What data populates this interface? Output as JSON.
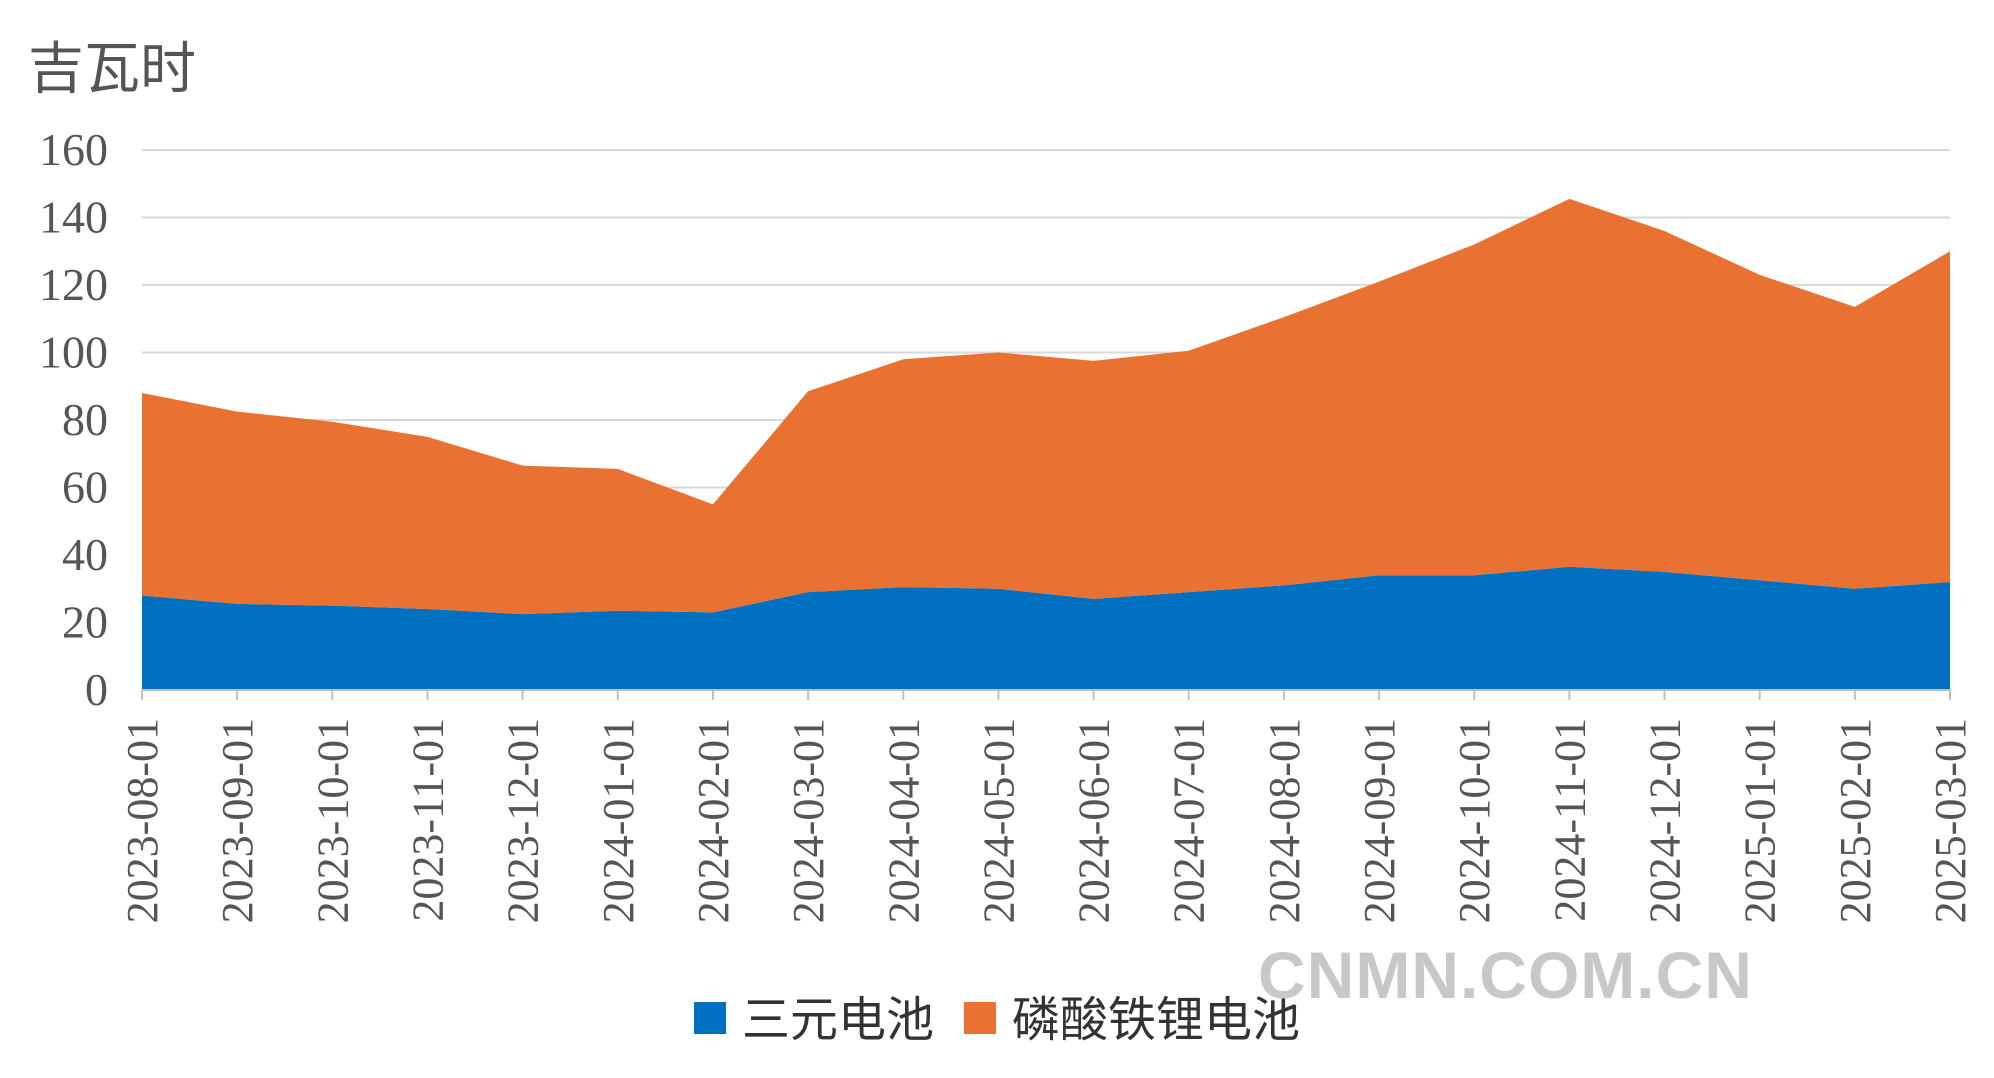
{
  "chart_data": {
    "type": "area",
    "stacked": true,
    "title": "",
    "ylabel": "吉瓦时",
    "xlabel": "",
    "ylim": [
      0,
      160
    ],
    "yticks": [
      0,
      20,
      40,
      60,
      80,
      100,
      120,
      140,
      160
    ],
    "grid": true,
    "legend_position": "bottom",
    "categories": [
      "2023-08-01",
      "2023-09-01",
      "2023-10-01",
      "2023-11-01",
      "2023-12-01",
      "2024-01-01",
      "2024-02-01",
      "2024-03-01",
      "2024-04-01",
      "2024-05-01",
      "2024-06-01",
      "2024-07-01",
      "2024-08-01",
      "2024-09-01",
      "2024-10-01",
      "2024-11-01",
      "2024-12-01",
      "2025-01-01",
      "2025-02-01",
      "2025-03-01"
    ],
    "series": [
      {
        "name": "三元电池",
        "color": "#0070c0",
        "values": [
          28,
          25.5,
          25,
          24,
          22.5,
          23.5,
          23,
          29,
          30.5,
          30,
          27,
          29,
          31,
          34,
          34,
          36.5,
          35,
          32.5,
          30,
          32
        ]
      },
      {
        "name": "磷酸铁锂电池",
        "color": "#e97132",
        "values": [
          60,
          57,
          54.5,
          51,
          44,
          42,
          32,
          59.5,
          67.5,
          70,
          70.5,
          71.5,
          79.5,
          87,
          98,
          109,
          101,
          90.5,
          83.5,
          98
        ]
      }
    ]
  },
  "watermark": "CNMN.COM.CN"
}
